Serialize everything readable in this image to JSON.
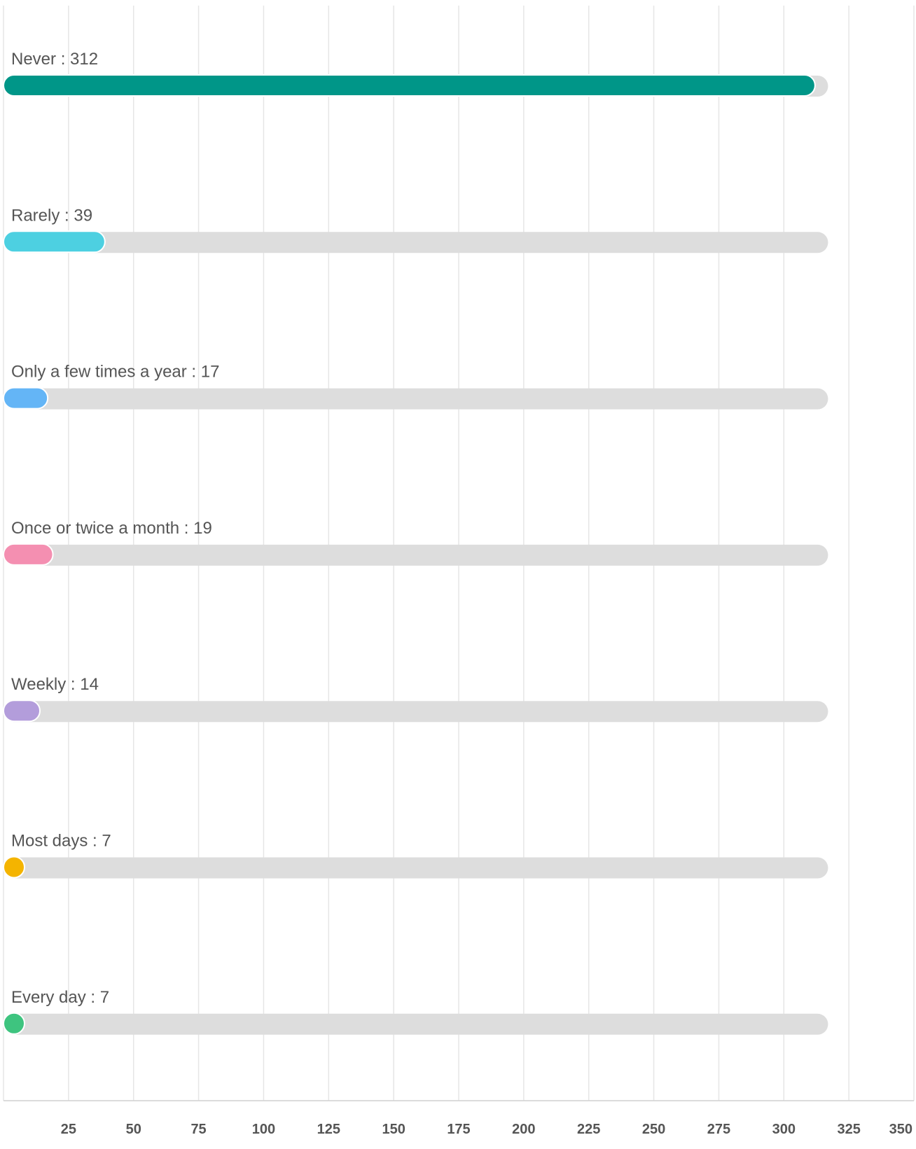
{
  "chart_data": {
    "type": "bar",
    "orientation": "horizontal",
    "categories": [
      "Never",
      "Rarely",
      "Only a few times a year",
      "Once or twice a month",
      "Weekly",
      "Most days",
      "Every day"
    ],
    "values": [
      312,
      39,
      17,
      19,
      14,
      7,
      7
    ],
    "labels": [
      "Never : 312",
      "Rarely : 39",
      "Only a few times a year : 17",
      "Once or twice a month : 19",
      "Weekly : 14",
      "Most days : 7",
      "Every day : 7"
    ],
    "colors": [
      "#009688",
      "#4dd0e1",
      "#64b5f6",
      "#f48fb1",
      "#b39ddb",
      "#f4b400",
      "#3ec47f"
    ],
    "track_color": "#dddddd",
    "xlim": [
      0,
      350
    ],
    "x_ticks": [
      25,
      50,
      75,
      100,
      125,
      150,
      175,
      200,
      225,
      250,
      275,
      300,
      325,
      350
    ],
    "x_tick_labels": [
      "25",
      "50",
      "75",
      "100",
      "125",
      "150",
      "175",
      "200",
      "225",
      "250",
      "275",
      "300",
      "325",
      "350"
    ],
    "track_max": 317,
    "grid": true,
    "title": "",
    "xlabel": "",
    "ylabel": ""
  }
}
